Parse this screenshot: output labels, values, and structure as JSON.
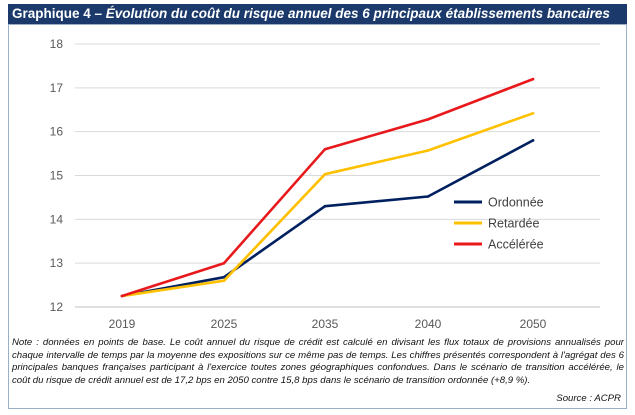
{
  "title": {
    "prefix": "Graphique 4 – ",
    "text": "Évolution du coût du risque annuel des 6 principaux établissements bancaires"
  },
  "chart_data": {
    "type": "line",
    "title": "Graphique 4 – Évolution du coût du risque annuel des 6 principaux établissements bancaires",
    "categories": [
      "2019",
      "2025",
      "2035",
      "2040",
      "2050"
    ],
    "ylim": [
      12,
      18
    ],
    "yticks": [
      12,
      13,
      14,
      15,
      16,
      17,
      18
    ],
    "xlabel": "",
    "ylabel": "",
    "grid": "horizontal",
    "legend_position": "right",
    "series": [
      {
        "name": "Ordonnée",
        "color": "#002060",
        "values": [
          12.25,
          12.68,
          14.3,
          14.52,
          15.8
        ]
      },
      {
        "name": "Retardée",
        "color": "#ffc000",
        "values": [
          12.25,
          12.6,
          15.03,
          15.57,
          16.42
        ]
      },
      {
        "name": "Accélérée",
        "color": "#e8191c",
        "values": [
          12.25,
          13.0,
          15.6,
          16.28,
          17.2
        ]
      }
    ]
  },
  "note": "Note : données en points de base. Le coût annuel du risque de crédit est calculé en divisant les flux totaux de provisions annualisés pour chaque intervalle de temps par la moyenne des expositions sur ce même pas de temps. Les chiffres présentés correspondent à l'agrégat des 6 principales banques françaises participant à l'exercice toutes zones géographiques confondues. Dans le scénario de transition accélérée, le coût du risque de crédit annuel est de 17,2 bps en 2050 contre 15,8 bps dans le scénario de transition ordonnée (+8,9 %).",
  "source": "Source : ACPR"
}
